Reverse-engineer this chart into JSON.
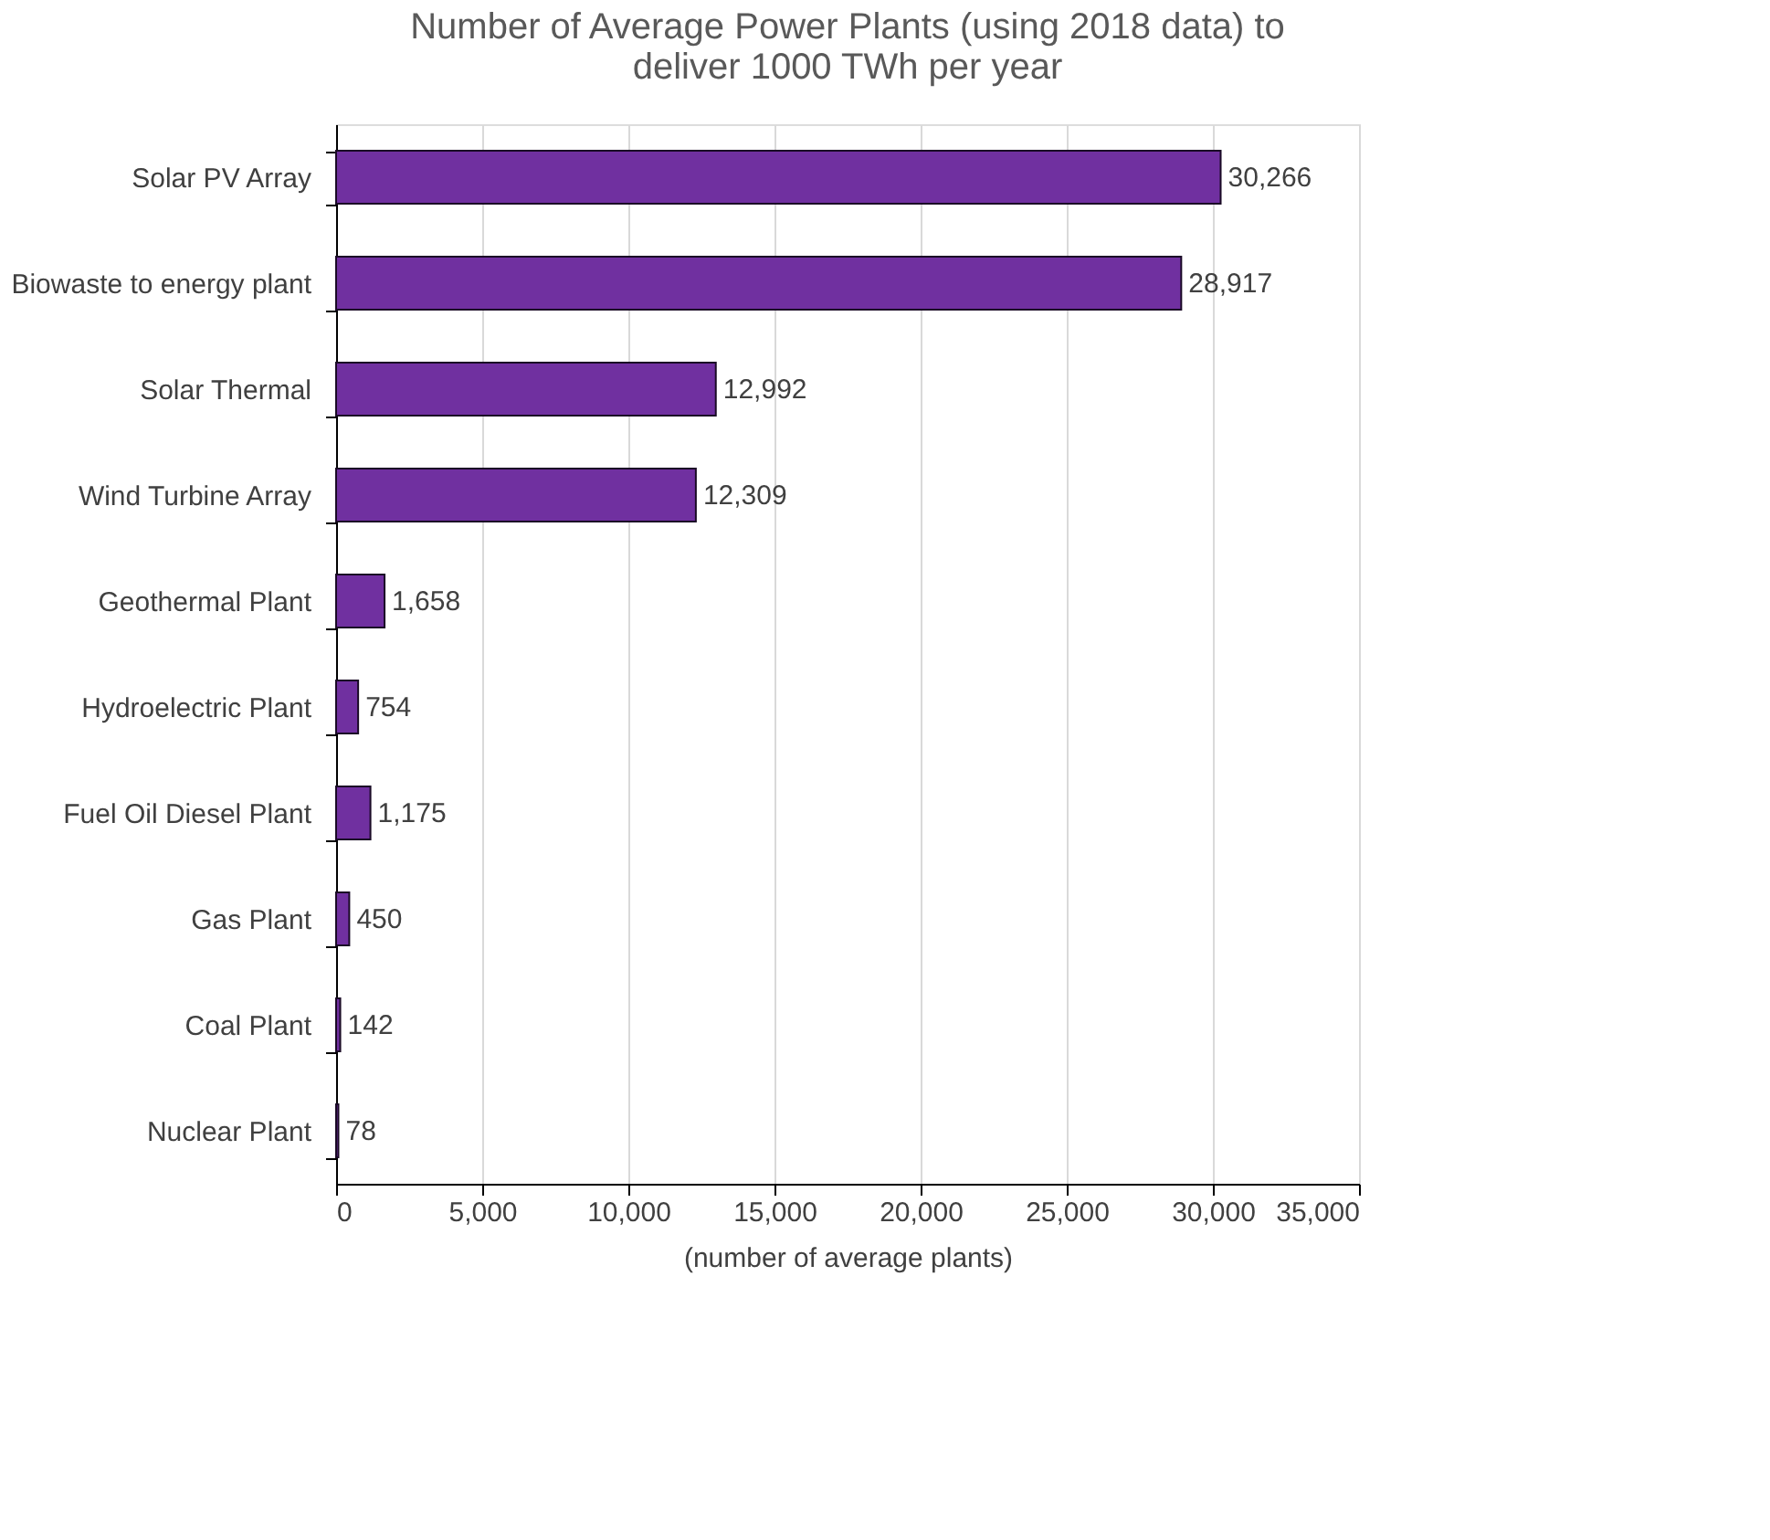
{
  "chart_data": {
    "type": "bar",
    "orientation": "horizontal",
    "title": [
      "Number of Average Power Plants (using 2018 data) to",
      "deliver 1000 TWh per year"
    ],
    "xlabel": "(number of average plants)",
    "categories": [
      "Solar PV Array",
      "Biowaste to energy plant",
      "Solar Thermal",
      "Wind Turbine Array",
      "Geothermal Plant",
      "Hydroelectric Plant",
      "Fuel Oil Diesel Plant",
      "Gas Plant",
      "Coal Plant",
      "Nuclear Plant"
    ],
    "values": [
      30266,
      28917,
      12992,
      12309,
      1658,
      754,
      1175,
      450,
      142,
      78
    ],
    "value_labels": [
      "30,266",
      "28,917",
      "12,992",
      "12,309",
      "1,658",
      "754",
      "1,175",
      "450",
      "142",
      "78"
    ],
    "color": "#7030a0",
    "xlim": [
      0,
      35000
    ],
    "xticks": [
      0,
      {
        "value": 5000,
        "label": "5,000"
      },
      {
        "value": 10000,
        "label": "10,000"
      },
      {
        "value": 15000,
        "label": "15,000"
      },
      {
        "value": 20000,
        "label": "20,000"
      },
      {
        "value": 25000,
        "label": "25,000"
      },
      {
        "value": 30000,
        "label": "30,000"
      },
      {
        "value": 35000,
        "label": "35,000"
      }
    ],
    "grid": "x"
  }
}
